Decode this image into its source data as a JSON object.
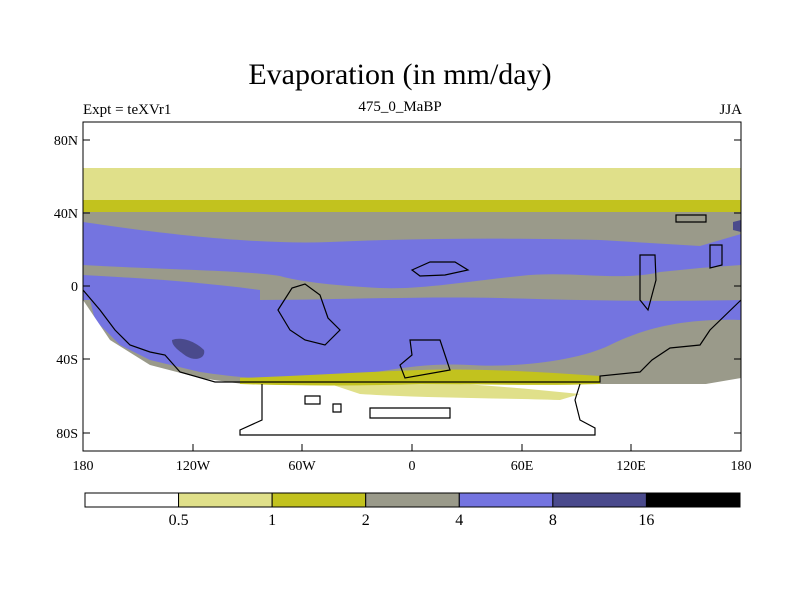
{
  "header": {
    "title": "Evaporation (in mm/day)",
    "experiment": "Expt = teXVr1",
    "period": "475_0_MaBP",
    "season": "JJA"
  },
  "map": {
    "lat_ticks": [
      "80N",
      "40N",
      "0",
      "40S",
      "80S"
    ],
    "lon_ticks": [
      "180",
      "120W",
      "60W",
      "0",
      "60E",
      "120E",
      "180"
    ]
  },
  "colorbar": {
    "labels": [
      "0.5",
      "1",
      "2",
      "4",
      "8",
      "16"
    ],
    "colors": [
      "#ffffff",
      "#e0e08a",
      "#c2c21e",
      "#9a9a8a",
      "#7474e0",
      "#4a4a8c",
      "#000000"
    ]
  }
}
